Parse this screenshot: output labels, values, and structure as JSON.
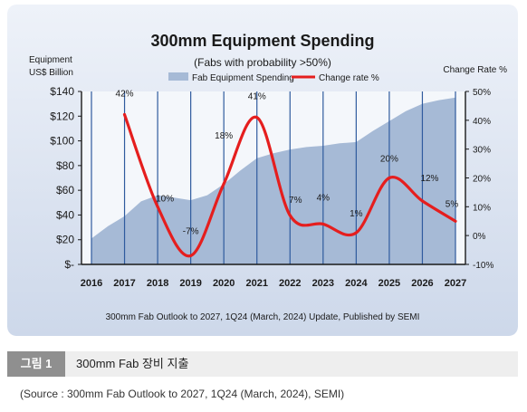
{
  "chart_data": {
    "type": "area",
    "title": "300mm Equipment Spending",
    "subtitle": "(Fabs with probability >50%)",
    "ylabel_left": [
      "Equipment",
      "US$ Billion"
    ],
    "ylabel_right": "Change Rate %",
    "categories": [
      "2016",
      "2017",
      "2018",
      "2019",
      "2020",
      "2021",
      "2022",
      "2023",
      "2024",
      "2025",
      "2026",
      "2027"
    ],
    "ylim_left": [
      0,
      140
    ],
    "ylim_right": [
      -10,
      50
    ],
    "yticks_left": [
      "$-",
      "$20",
      "$40",
      "$60",
      "$80",
      "$100",
      "$120",
      "$140"
    ],
    "yticks_right": [
      "-10%",
      "0%",
      "10%",
      "20%",
      "30%",
      "40%",
      "50%"
    ],
    "series": [
      {
        "name": "Fab Equipment Spending",
        "type": "area",
        "axis": "left",
        "x": [
          2016,
          2016.5,
          2017,
          2017.5,
          2018,
          2018.5,
          2019,
          2019.5,
          2020,
          2020.5,
          2021,
          2021.5,
          2022,
          2022.5,
          2023,
          2023.5,
          2024,
          2024.5,
          2025,
          2025.5,
          2026,
          2026.5,
          2027
        ],
        "values": [
          21,
          31,
          39,
          51,
          56,
          54,
          52,
          56,
          65,
          76,
          86,
          90,
          93,
          95,
          96,
          98,
          99,
          108,
          116,
          124,
          130,
          133,
          135
        ]
      },
      {
        "name": "Change rate %",
        "type": "line",
        "axis": "right",
        "values": [
          null,
          42,
          10,
          -7,
          18,
          41,
          7,
          4,
          1,
          20,
          12,
          5
        ],
        "labels": [
          "",
          "42%",
          "10%",
          "-7%",
          "18%",
          "41%",
          "7%",
          "4%",
          "1%",
          "20%",
          "12%",
          "5%"
        ]
      }
    ],
    "legend_position": "top",
    "grid": "vertical lines at each year",
    "colors": {
      "panel": "#d6e0f0",
      "area": "#a6bad6",
      "line": "#e51e1e",
      "grid": "#2f5b9e"
    },
    "footnote": "300mm Fab Outlook to 2027, 1Q24 (March, 2024) Update, Published by SEMI"
  },
  "caption": {
    "tag": "그림 1",
    "text": "300mm Fab 장비 지출"
  },
  "source": "(Source : 300mm Fab Outlook to 2027, 1Q24 (March, 2024), SEMI)"
}
